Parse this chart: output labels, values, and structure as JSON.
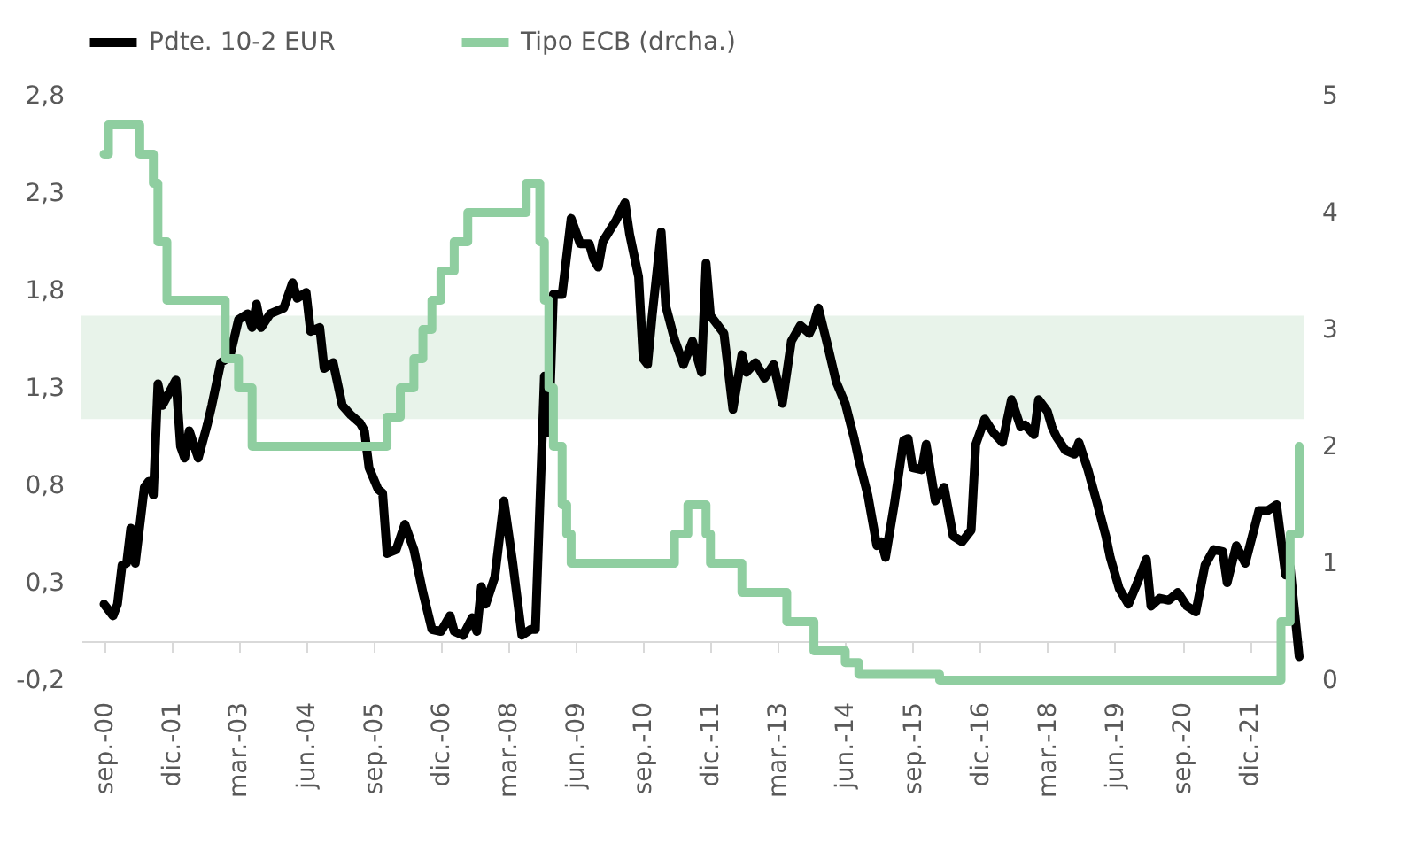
{
  "chart_data": {
    "type": "line",
    "xlim": [
      "2000-04",
      "2022-12"
    ],
    "xticks": [
      {
        "value": "2000-09",
        "label": "sep.-00"
      },
      {
        "value": "2001-12",
        "label": "dic.-01"
      },
      {
        "value": "2003-03",
        "label": "mar.-03"
      },
      {
        "value": "2004-06",
        "label": "jun.-04"
      },
      {
        "value": "2005-09",
        "label": "sep.-05"
      },
      {
        "value": "2006-12",
        "label": "dic.-06"
      },
      {
        "value": "2008-03",
        "label": "mar.-08"
      },
      {
        "value": "2009-06",
        "label": "jun.-09"
      },
      {
        "value": "2010-09",
        "label": "sep.-10"
      },
      {
        "value": "2011-12",
        "label": "dic.-11"
      },
      {
        "value": "2013-03",
        "label": "mar.-13"
      },
      {
        "value": "2014-06",
        "label": "jun.-14"
      },
      {
        "value": "2015-09",
        "label": "sep.-15"
      },
      {
        "value": "2016-12",
        "label": "dic.-16"
      },
      {
        "value": "2018-03",
        "label": "mar.-18"
      },
      {
        "value": "2019-06",
        "label": "jun.-19"
      },
      {
        "value": "2020-09",
        "label": "sep.-20"
      },
      {
        "value": "2021-12",
        "label": "dic.-21"
      }
    ],
    "ylim": [
      -0.2,
      2.8
    ],
    "yticks": [
      {
        "value": -0.2,
        "label": "-0,2"
      },
      {
        "value": 0.3,
        "label": "0,3"
      },
      {
        "value": 0.8,
        "label": "0,8"
      },
      {
        "value": 1.3,
        "label": "1,3"
      },
      {
        "value": 1.8,
        "label": "1,8"
      },
      {
        "value": 2.3,
        "label": "2,3"
      },
      {
        "value": 2.8,
        "label": "2,8"
      }
    ],
    "y2lim": [
      0,
      5
    ],
    "y2ticks": [
      0,
      1,
      2,
      3,
      4,
      5
    ],
    "bands": [
      {
        "axis": "y",
        "from": 1.14,
        "to": 1.67,
        "color": "#e8f3ea"
      }
    ],
    "legend": "top",
    "grid": false,
    "series": [
      {
        "name": "Pdte. 10-2 EUR",
        "color": "#000000",
        "x": [
          "2000-09",
          "2000-11",
          "2000-12",
          "2001-01",
          "2001-02",
          "2001-03",
          "2001-04",
          "2001-06",
          "2001-07",
          "2001-08",
          "2001-09",
          "2001-10",
          "2002-01",
          "2002-02",
          "2002-03",
          "2002-04",
          "2002-06",
          "2002-08",
          "2002-09",
          "2002-11",
          "2003-01",
          "2003-03",
          "2003-05",
          "2003-06",
          "2003-07",
          "2003-08",
          "2003-10",
          "2004-01",
          "2004-03",
          "2004-04",
          "2004-06",
          "2004-07",
          "2004-09",
          "2004-10",
          "2004-12",
          "2005-02",
          "2005-04",
          "2005-06",
          "2005-07",
          "2005-08",
          "2005-10",
          "2005-11",
          "2005-12",
          "2006-02",
          "2006-04",
          "2006-06",
          "2006-08",
          "2006-10",
          "2006-12",
          "2007-02",
          "2007-03",
          "2007-05",
          "2007-07",
          "2007-08",
          "2007-09",
          "2007-10",
          "2007-12",
          "2008-02",
          "2008-04",
          "2008-06",
          "2008-08",
          "2008-09",
          "2008-11",
          "2008-12",
          "2009-01",
          "2009-03",
          "2009-05",
          "2009-07",
          "2009-09",
          "2009-10",
          "2009-11",
          "2009-12",
          "2010-03",
          "2010-05",
          "2010-06",
          "2010-08",
          "2010-09",
          "2010-10",
          "2010-11",
          "2011-01",
          "2011-02",
          "2011-04",
          "2011-06",
          "2011-08",
          "2011-10",
          "2011-11",
          "2011-12",
          "2012-01",
          "2012-03",
          "2012-05",
          "2012-07",
          "2012-08",
          "2012-10",
          "2012-12",
          "2013-02",
          "2013-04",
          "2013-06",
          "2013-08",
          "2013-10",
          "2013-11",
          "2013-12",
          "2014-02",
          "2014-04",
          "2014-06",
          "2014-08",
          "2014-09",
          "2014-11",
          "2015-01",
          "2015-02",
          "2015-03",
          "2015-05",
          "2015-07",
          "2015-08",
          "2015-09",
          "2015-11",
          "2015-12",
          "2016-02",
          "2016-04",
          "2016-06",
          "2016-08",
          "2016-10",
          "2016-11",
          "2017-01",
          "2017-03",
          "2017-05",
          "2017-07",
          "2017-09",
          "2017-10",
          "2017-12",
          "2018-01",
          "2018-03",
          "2018-04",
          "2018-05",
          "2018-07",
          "2018-09",
          "2018-10",
          "2018-12",
          "2019-02",
          "2019-04",
          "2019-05",
          "2019-07",
          "2019-09",
          "2019-11",
          "2020-01",
          "2020-02",
          "2020-04",
          "2020-06",
          "2020-08",
          "2020-10",
          "2020-12",
          "2021-02",
          "2021-04",
          "2021-06",
          "2021-07",
          "2021-09",
          "2021-11",
          "2022-02",
          "2022-04",
          "2022-06",
          "2022-08",
          "2022-09",
          "2022-11"
        ],
        "values": [
          0.19,
          0.13,
          0.19,
          0.39,
          0.4,
          0.58,
          0.4,
          0.79,
          0.82,
          0.75,
          1.32,
          1.21,
          1.34,
          1.0,
          0.94,
          1.08,
          0.94,
          1.11,
          1.21,
          1.43,
          1.46,
          1.65,
          1.68,
          1.61,
          1.73,
          1.61,
          1.68,
          1.71,
          1.84,
          1.76,
          1.79,
          1.59,
          1.61,
          1.4,
          1.43,
          1.21,
          1.16,
          1.12,
          1.08,
          0.89,
          0.78,
          0.76,
          0.45,
          0.47,
          0.6,
          0.47,
          0.25,
          0.06,
          0.05,
          0.13,
          0.05,
          0.03,
          0.12,
          0.05,
          0.28,
          0.19,
          0.33,
          0.72,
          0.4,
          0.03,
          0.06,
          0.06,
          1.36,
          1.07,
          1.78,
          1.78,
          2.17,
          2.04,
          2.04,
          1.96,
          1.92,
          2.05,
          2.16,
          2.25,
          2.09,
          1.87,
          1.45,
          1.42,
          1.67,
          2.1,
          1.72,
          1.55,
          1.42,
          1.54,
          1.38,
          1.94,
          1.67,
          1.64,
          1.58,
          1.19,
          1.47,
          1.38,
          1.43,
          1.35,
          1.42,
          1.22,
          1.54,
          1.62,
          1.58,
          1.63,
          1.71,
          1.52,
          1.33,
          1.22,
          1.04,
          0.93,
          0.75,
          0.49,
          0.51,
          0.43,
          0.71,
          1.03,
          1.04,
          0.89,
          0.88,
          1.01,
          0.72,
          0.79,
          0.54,
          0.51,
          0.57,
          1.01,
          1.14,
          1.07,
          1.02,
          1.24,
          1.1,
          1.11,
          1.06,
          1.24,
          1.18,
          1.1,
          1.05,
          0.98,
          0.96,
          1.02,
          0.88,
          0.71,
          0.54,
          0.43,
          0.27,
          0.19,
          0.3,
          0.42,
          0.18,
          0.22,
          0.21,
          0.25,
          0.18,
          0.15,
          0.39,
          0.47,
          0.46,
          0.3,
          0.49,
          0.4,
          0.67,
          0.67,
          0.7,
          0.34,
          0.38,
          -0.08
        ]
      },
      {
        "name": "Tipo ECB (drcha.)",
        "color": "#8fcea0",
        "type": "step",
        "axis": "y2",
        "x": [
          "2000-09",
          "2000-10",
          "2001-05",
          "2001-08",
          "2001-09",
          "2001-11",
          "2002-12",
          "2003-03",
          "2003-06",
          "2005-12",
          "2006-03",
          "2006-06",
          "2006-08",
          "2006-10",
          "2006-12",
          "2007-03",
          "2007-06",
          "2008-07",
          "2008-10",
          "2008-11",
          "2008-12",
          "2009-01",
          "2009-03",
          "2009-04",
          "2009-05",
          "2011-04",
          "2011-07",
          "2011-11",
          "2011-12",
          "2012-07",
          "2013-05",
          "2013-11",
          "2014-06",
          "2014-09",
          "2016-03",
          "2022-07",
          "2022-09",
          "2022-11"
        ],
        "values": [
          4.5,
          4.75,
          4.5,
          4.25,
          3.75,
          3.25,
          2.75,
          2.5,
          2.0,
          2.25,
          2.5,
          2.75,
          3.0,
          3.25,
          3.5,
          3.75,
          4.0,
          4.25,
          3.75,
          3.25,
          2.5,
          2.0,
          1.5,
          1.25,
          1.0,
          1.25,
          1.5,
          1.25,
          1.0,
          0.75,
          0.5,
          0.25,
          0.15,
          0.05,
          0.0,
          0.5,
          1.25,
          2.0
        ]
      }
    ]
  }
}
